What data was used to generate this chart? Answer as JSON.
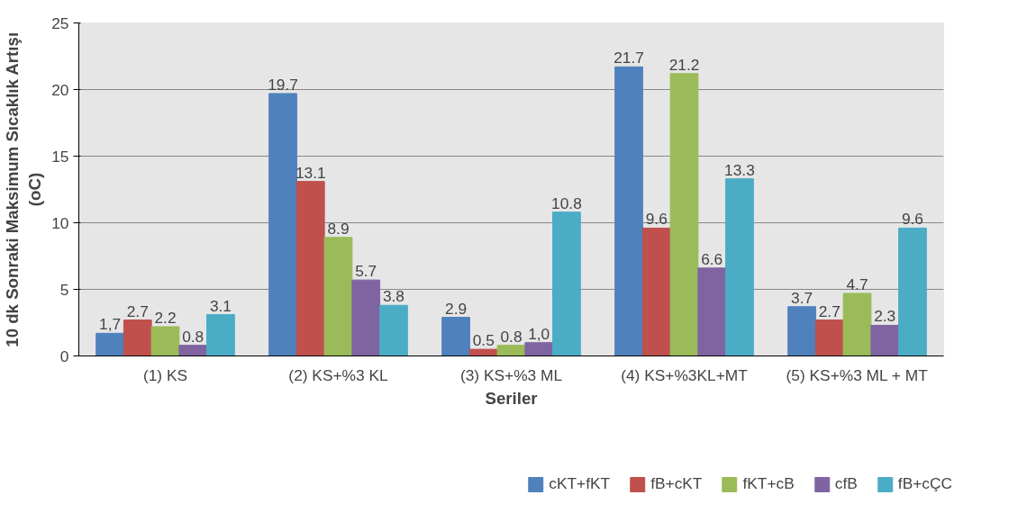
{
  "chart_data": {
    "type": "bar",
    "xlabel": "Seriler",
    "ylabel": "10 dk Sonraki Maksimum Sıcaklık Artışı (oC)",
    "categories": [
      "(1) KS",
      "(2) KS+%3 KL",
      "(3) KS+%3 ML",
      "(4) KS+%3KL+MT",
      "(5) KS+%3 ML + MT"
    ],
    "series": [
      {
        "name": "cKT+fKT",
        "color": "#4f81bd",
        "values": [
          1.7,
          19.7,
          2.9,
          21.7,
          3.7
        ],
        "value_labels": [
          "1,7",
          "19.7",
          "2.9",
          "21.7",
          "3.7"
        ]
      },
      {
        "name": "fB+cKT",
        "color": "#c0504d",
        "values": [
          2.7,
          13.1,
          0.5,
          9.6,
          2.7
        ],
        "value_labels": [
          "2.7",
          "13.1",
          "0.5",
          "9.6",
          "2.7"
        ]
      },
      {
        "name": "fKT+cB",
        "color": "#9bbb59",
        "values": [
          2.2,
          8.9,
          0.8,
          21.2,
          4.7
        ],
        "value_labels": [
          "2.2",
          "8.9",
          "0.8",
          "21.2",
          "4.7"
        ]
      },
      {
        "name": "cfB",
        "color": "#8064a2",
        "values": [
          0.8,
          5.7,
          1.0,
          6.6,
          2.3
        ],
        "value_labels": [
          "0.8",
          "5.7",
          "1,0",
          "6.6",
          "2.3"
        ]
      },
      {
        "name": "fB+cÇC",
        "color": "#4bacc6",
        "values": [
          3.1,
          3.8,
          10.8,
          13.3,
          9.6
        ],
        "value_labels": [
          "3.1",
          "3.8",
          "10.8",
          "13.3",
          "9.6"
        ]
      }
    ],
    "ylim": [
      0,
      25
    ],
    "yticks": [
      0,
      5,
      10,
      15,
      20,
      25
    ],
    "grid": "y",
    "legend": "bottom"
  }
}
